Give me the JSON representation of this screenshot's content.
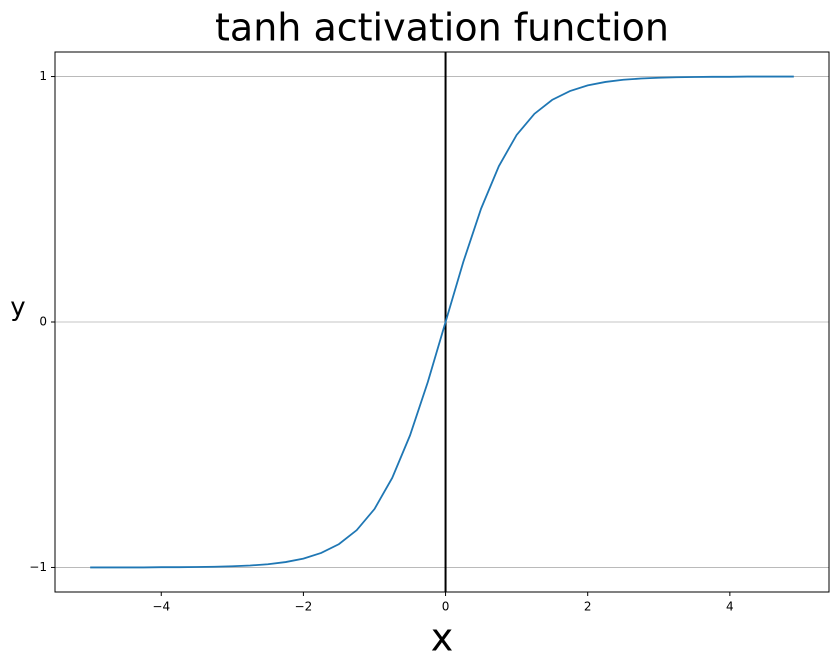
{
  "chart_data": {
    "type": "line",
    "title": "tanh activation function",
    "x_label": "x",
    "y_label": "y",
    "x": [
      -5,
      -4.75,
      -4.5,
      -4.25,
      -4,
      -3.75,
      -3.5,
      -3.25,
      -3,
      -2.75,
      -2.5,
      -2.25,
      -2,
      -1.75,
      -1.5,
      -1.25,
      -1,
      -0.75,
      -0.5,
      -0.25,
      0,
      0.25,
      0.5,
      0.75,
      1,
      1.25,
      1.5,
      1.75,
      2,
      2.25,
      2.5,
      2.75,
      3,
      3.25,
      3.5,
      3.75,
      4,
      4.25,
      4.5,
      4.75,
      4.9
    ],
    "series": [
      {
        "color": "#1f77b4",
        "values": [
          -1.0,
          -1.0,
          -1.0,
          -1.0,
          -0.999,
          -0.999,
          -0.998,
          -0.997,
          -0.995,
          -0.992,
          -0.987,
          -0.978,
          -0.964,
          -0.941,
          -0.905,
          -0.848,
          -0.762,
          -0.635,
          -0.462,
          -0.245,
          0,
          0.245,
          0.462,
          0.635,
          0.762,
          0.848,
          0.905,
          0.941,
          0.964,
          0.978,
          0.987,
          0.992,
          0.995,
          0.997,
          0.998,
          0.999,
          0.999,
          1.0,
          1.0,
          1.0,
          1.0
        ]
      }
    ],
    "xlim": [
      -5.495,
      5.395
    ],
    "ylim": [
      -1.1,
      1.1
    ],
    "xticks": [
      {
        "value": -4,
        "label": "−4"
      },
      {
        "value": -2,
        "label": "−2"
      },
      0,
      2,
      4
    ],
    "yticks": [
      {
        "value": -1,
        "label": "−1"
      },
      0,
      1
    ],
    "grid": "y",
    "vline": 0,
    "vline_color": "#000000"
  }
}
